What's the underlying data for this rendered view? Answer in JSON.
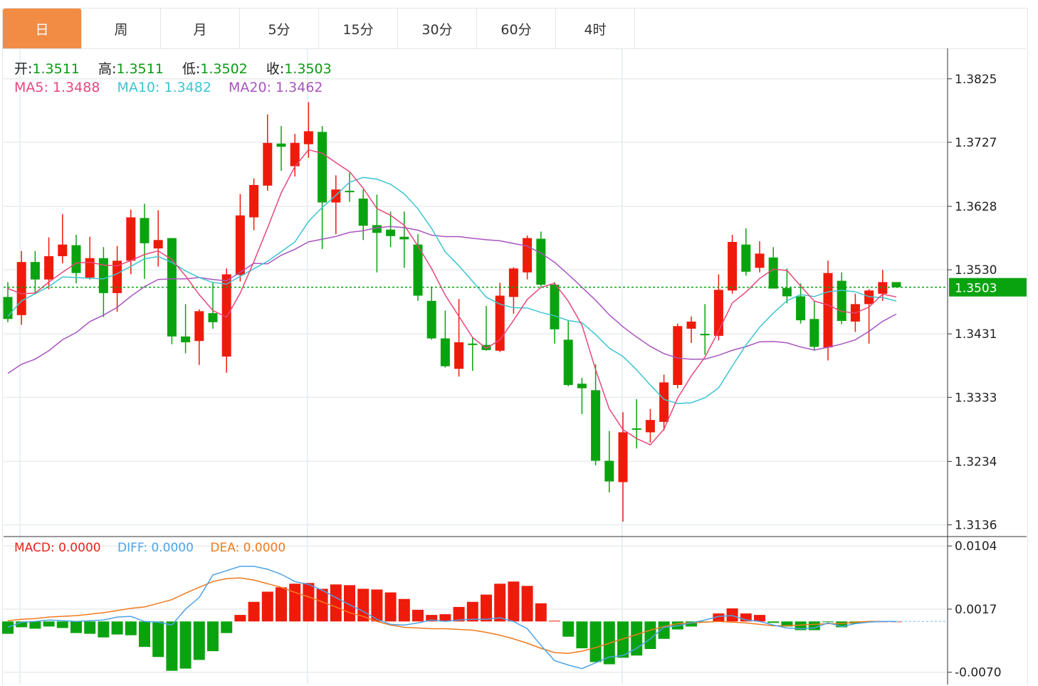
{
  "tabs": [
    {
      "label": "日",
      "active": true
    },
    {
      "label": "周",
      "active": false
    },
    {
      "label": "月",
      "active": false
    },
    {
      "label": "5分",
      "active": false
    },
    {
      "label": "15分",
      "active": false
    },
    {
      "label": "30分",
      "active": false
    },
    {
      "label": "60分",
      "active": false
    },
    {
      "label": "4时",
      "active": false
    }
  ],
  "ohlc_readout": {
    "open_label": "开:",
    "open": "1.3511",
    "high_label": "高:",
    "high": "1.3511",
    "low_label": "低:",
    "low": "1.3502",
    "close_label": "收:",
    "close": "1.3503"
  },
  "ma_readout": {
    "ma5": "MA5: 1.3488",
    "ma10": "MA10: 1.3482",
    "ma20": "MA20: 1.3462"
  },
  "macd_readout": {
    "macd": "MACD: 0.0000",
    "diff": "DIFF: 0.0000",
    "dea": "DEA: 0.0000"
  },
  "colors": {
    "up": "#ee1b0b",
    "down": "#0aa310",
    "active_tab": "#f28c45",
    "ma5": "#e8467c",
    "ma10": "#3cc5d0",
    "ma20": "#a855c0",
    "diff": "#4da3e8",
    "dea": "#f07a1e"
  },
  "chart_data": [
    {
      "type": "candlestick",
      "ylim": [
        1.3119,
        1.3872
      ],
      "y_ticks": [
        "1.3825",
        "1.3727",
        "1.3628",
        "1.3530",
        "1.3431",
        "1.3333",
        "1.3234",
        "1.3136"
      ],
      "last_price_label": "1.3503",
      "grid": true,
      "ohlc": [
        [
          1.3488,
          1.3511,
          1.3449,
          1.3454
        ],
        [
          1.346,
          1.3559,
          1.3445,
          1.3542
        ],
        [
          1.3542,
          1.3559,
          1.3493,
          1.3515
        ],
        [
          1.3515,
          1.358,
          1.35,
          1.3551
        ],
        [
          1.3551,
          1.3616,
          1.354,
          1.3569
        ],
        [
          1.3568,
          1.3584,
          1.3509,
          1.3525
        ],
        [
          1.3518,
          1.3581,
          1.3515,
          1.3548
        ],
        [
          1.3548,
          1.3565,
          1.3457,
          1.3494
        ],
        [
          1.3494,
          1.3567,
          1.3465,
          1.3544
        ],
        [
          1.3544,
          1.3623,
          1.3523,
          1.3611
        ],
        [
          1.361,
          1.3632,
          1.3516,
          1.3571
        ],
        [
          1.3563,
          1.3622,
          1.3535,
          1.3576
        ],
        [
          1.3579,
          1.3579,
          1.3415,
          1.3427
        ],
        [
          1.3427,
          1.3477,
          1.3401,
          1.3418
        ],
        [
          1.342,
          1.3469,
          1.3383,
          1.3466
        ],
        [
          1.3463,
          1.3511,
          1.3439,
          1.3449
        ],
        [
          1.3396,
          1.3532,
          1.3371,
          1.3523
        ],
        [
          1.3522,
          1.3647,
          1.3512,
          1.3614
        ],
        [
          1.3611,
          1.3671,
          1.3591,
          1.3661
        ],
        [
          1.366,
          1.377,
          1.3652,
          1.3726
        ],
        [
          1.3725,
          1.3752,
          1.3683,
          1.372
        ],
        [
          1.369,
          1.374,
          1.3674,
          1.3726
        ],
        [
          1.3724,
          1.3789,
          1.3703,
          1.3744
        ],
        [
          1.3743,
          1.3752,
          1.3562,
          1.3634
        ],
        [
          1.3634,
          1.3676,
          1.3585,
          1.3654
        ],
        [
          1.3652,
          1.368,
          1.3635,
          1.365
        ],
        [
          1.364,
          1.3654,
          1.3576,
          1.3598
        ],
        [
          1.3599,
          1.3646,
          1.3526,
          1.3587
        ],
        [
          1.3592,
          1.362,
          1.3565,
          1.3582
        ],
        [
          1.3581,
          1.362,
          1.3533,
          1.3577
        ],
        [
          1.3569,
          1.3585,
          1.3482,
          1.349
        ],
        [
          1.3482,
          1.3504,
          1.3422,
          1.3424
        ],
        [
          1.3424,
          1.3467,
          1.3379,
          1.3381
        ],
        [
          1.3377,
          1.3485,
          1.3365,
          1.3418
        ],
        [
          1.3416,
          1.3425,
          1.3374,
          1.3414
        ],
        [
          1.3414,
          1.3474,
          1.3405,
          1.3406
        ],
        [
          1.3405,
          1.351,
          1.3403,
          1.349
        ],
        [
          1.3488,
          1.3534,
          1.3462,
          1.3532
        ],
        [
          1.3526,
          1.3583,
          1.3515,
          1.3579
        ],
        [
          1.3578,
          1.3589,
          1.3504,
          1.3507
        ],
        [
          1.3507,
          1.3511,
          1.3416,
          1.3438
        ],
        [
          1.3422,
          1.3452,
          1.335,
          1.3352
        ],
        [
          1.3354,
          1.3363,
          1.3307,
          1.3347
        ],
        [
          1.3344,
          1.3384,
          1.3228,
          1.3235
        ],
        [
          1.3235,
          1.3281,
          1.3186,
          1.3203
        ],
        [
          1.3202,
          1.331,
          1.3141,
          1.3279
        ],
        [
          1.3285,
          1.333,
          1.3254,
          1.3283
        ],
        [
          1.3279,
          1.3315,
          1.3263,
          1.3298
        ],
        [
          1.3295,
          1.3368,
          1.3282,
          1.3356
        ],
        [
          1.3352,
          1.3447,
          1.3347,
          1.3443
        ],
        [
          1.3439,
          1.3458,
          1.3417,
          1.345
        ],
        [
          1.3431,
          1.3477,
          1.3399,
          1.3429
        ],
        [
          1.3428,
          1.3523,
          1.3421,
          1.3499
        ],
        [
          1.3498,
          1.3584,
          1.3493,
          1.3573
        ],
        [
          1.3569,
          1.3594,
          1.3521,
          1.3527
        ],
        [
          1.3533,
          1.3574,
          1.3526,
          1.3555
        ],
        [
          1.3549,
          1.3565,
          1.3501,
          1.3501
        ],
        [
          1.3502,
          1.3532,
          1.3478,
          1.3489
        ],
        [
          1.3489,
          1.3509,
          1.3447,
          1.3452
        ],
        [
          1.3454,
          1.3482,
          1.3405,
          1.3411
        ],
        [
          1.341,
          1.3544,
          1.339,
          1.3525
        ],
        [
          1.3513,
          1.3526,
          1.3446,
          1.3451
        ],
        [
          1.345,
          1.3493,
          1.3434,
          1.3477
        ],
        [
          1.3477,
          1.35,
          1.3416,
          1.3498
        ],
        [
          1.3493,
          1.353,
          1.3482,
          1.3511
        ],
        [
          1.3511,
          1.3511,
          1.3502,
          1.3503
        ]
      ],
      "ma_head": {
        "ma5": [
          1.3501,
          1.3493,
          1.3494,
          1.3511
        ],
        "ma10": [
          1.3458,
          1.3482,
          1.3493,
          1.3504,
          1.3519,
          1.3518,
          1.3517,
          1.3516,
          1.3524
        ],
        "ma20": [
          1.337,
          1.3384,
          1.3392,
          1.3405,
          1.3422,
          1.3433,
          1.345,
          1.346,
          1.3472,
          1.3489,
          1.3504,
          1.3515,
          1.3516,
          1.3516,
          1.3518,
          1.3515,
          1.3513,
          1.3526,
          1.354
        ]
      }
    },
    {
      "type": "macd",
      "ylim": [
        -0.0087,
        0.0116
      ],
      "y_ticks": [
        "0.0104",
        "0.0017",
        "-0.0070"
      ],
      "macd": [
        -0.0017,
        -0.0008,
        -0.001,
        -0.0007,
        -0.0009,
        -0.0016,
        -0.0017,
        -0.0022,
        -0.0018,
        -0.0019,
        -0.0035,
        -0.0049,
        -0.0068,
        -0.0065,
        -0.0053,
        -0.0041,
        -0.0016,
        0.0009,
        0.0027,
        0.0041,
        0.0047,
        0.0052,
        0.0053,
        0.0045,
        0.0051,
        0.005,
        0.0045,
        0.0044,
        0.004,
        0.0031,
        0.0016,
        0.0009,
        0.001,
        0.002,
        0.0027,
        0.0037,
        0.0052,
        0.0055,
        0.0049,
        0.0025,
        0.0001,
        -0.0021,
        -0.0037,
        -0.0056,
        -0.0059,
        -0.005,
        -0.0047,
        -0.0038,
        -0.0024,
        -0.0011,
        -0.0007,
        -0.0001,
        0.0011,
        0.0018,
        0.0011,
        0.0009,
        -0.0002,
        -0.0007,
        -0.0012,
        -0.0012,
        -0.0001,
        -0.0008,
        -0.0003,
        0.0,
        0.0,
        0.0
      ],
      "diff": [
        -0.0008,
        -0.0001,
        0.0,
        0.0002,
        0.0001,
        0.0,
        0.0001,
        0.0002,
        0.0006,
        0.0007,
        0.0,
        -0.0001,
        -0.0005,
        0.0017,
        0.0033,
        0.0064,
        0.007,
        0.0076,
        0.0076,
        0.0072,
        0.0065,
        0.0055,
        0.0051,
        0.0043,
        0.0033,
        0.0023,
        0.0014,
        0.0003,
        -0.0004,
        -0.0005,
        -0.0002,
        0.0002,
        0.0,
        0.0002,
        0.0003,
        0.0003,
        0.0005,
        0.0,
        -0.001,
        -0.0033,
        -0.0054,
        -0.006,
        -0.0065,
        -0.0057,
        -0.0049,
        -0.0047,
        -0.0037,
        -0.0024,
        -0.0008,
        -0.0006,
        -0.0002,
        0.0002,
        0.0007,
        0.0008,
        0.0002,
        0.0,
        -0.0005,
        -0.0009,
        -0.001,
        -0.0009,
        -0.0002,
        -0.0007,
        -0.0003,
        -0.0001,
        0.0,
        0.0
      ],
      "dea": [
        0.0001,
        0.0003,
        0.0004,
        0.0006,
        0.0007,
        0.0008,
        0.001,
        0.0012,
        0.0015,
        0.0018,
        0.002,
        0.0025,
        0.003,
        0.0039,
        0.0047,
        0.0055,
        0.0059,
        0.006,
        0.0057,
        0.0052,
        0.0047,
        0.004,
        0.0034,
        0.0027,
        0.002,
        0.0012,
        0.0007,
        0.0,
        -0.0005,
        -0.0008,
        -0.0009,
        -0.001,
        -0.001,
        -0.0011,
        -0.0012,
        -0.0015,
        -0.0019,
        -0.0024,
        -0.003,
        -0.0037,
        -0.0043,
        -0.0044,
        -0.0041,
        -0.0036,
        -0.003,
        -0.0024,
        -0.0018,
        -0.0012,
        -0.0007,
        -0.0003,
        -0.0002,
        -0.0001,
        0.0,
        -0.0001,
        -0.0002,
        -0.0004,
        -0.0006,
        -0.0006,
        -0.0005,
        -0.0004,
        -0.0003,
        -0.0003,
        -0.0001,
        0.0,
        0.0,
        0.0
      ]
    }
  ]
}
